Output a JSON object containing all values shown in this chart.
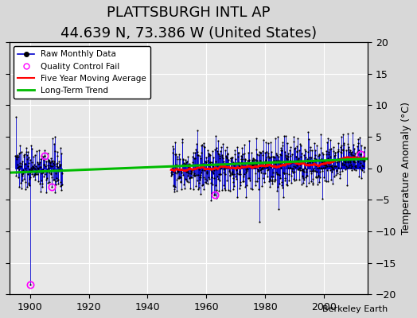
{
  "title": "PLATTSBURGH INTL AP",
  "subtitle": "44.639 N, 73.386 W (United States)",
  "ylabel": "Temperature Anomaly (°C)",
  "credit": "Berkeley Earth",
  "ylim": [
    -20,
    20
  ],
  "xlim": [
    1893,
    2015
  ],
  "yticks": [
    -20,
    -15,
    -10,
    -5,
    0,
    5,
    10,
    15,
    20
  ],
  "xticks": [
    1900,
    1920,
    1940,
    1960,
    1980,
    2000
  ],
  "bg_color": "#d8d8d8",
  "plot_bg_color": "#e8e8e8",
  "grid_color": "#ffffff",
  "raw_color": "#0000cc",
  "qc_color": "#ff00ff",
  "moving_avg_color": "#ff0000",
  "trend_color": "#00bb00",
  "title_fontsize": 13,
  "subtitle_fontsize": 10,
  "label_fontsize": 9,
  "tick_fontsize": 9,
  "seed": 137
}
